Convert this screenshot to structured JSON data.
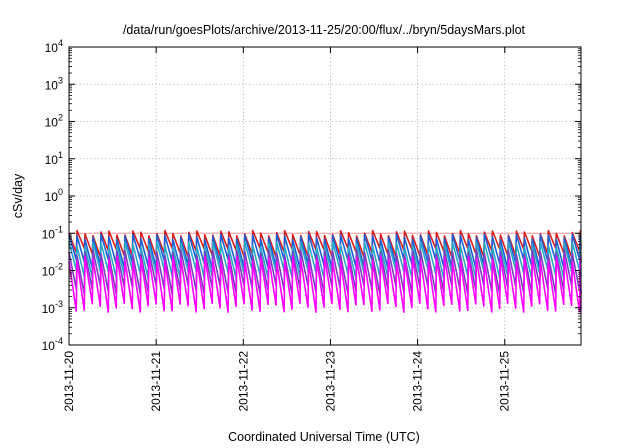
{
  "chart_data": {
    "type": "line",
    "title": "/data/run/goesPlots/archive/2013-11-25/20:00/flux/../bryn/5daysMars.plot",
    "xlabel": "Coordinated Universal Time (UTC)",
    "ylabel": "cSv/day",
    "yscale": "log",
    "ylim": [
      0.0001,
      10000
    ],
    "y_ticks": [
      {
        "base": "10",
        "exp": "-4"
      },
      {
        "base": "10",
        "exp": "-3"
      },
      {
        "base": "10",
        "exp": "-2"
      },
      {
        "base": "10",
        "exp": "-1"
      },
      {
        "base": "10",
        "exp": "0"
      },
      {
        "base": "10",
        "exp": "1"
      },
      {
        "base": "10",
        "exp": "2"
      },
      {
        "base": "10",
        "exp": "3"
      },
      {
        "base": "10",
        "exp": "4"
      }
    ],
    "x_ticks": [
      "2013-11-20",
      "2013-11-21",
      "2013-11-22",
      "2013-11-23",
      "2013-11-24",
      "2013-11-25"
    ],
    "xlim": [
      "2013-11-20T00:00",
      "2013-11-25T21:00"
    ],
    "grid": true,
    "reference_line": {
      "y": 0.1,
      "color": "#ff9999"
    },
    "sawtooth_period_hours": 2.2,
    "series": [
      {
        "color": "#d62020",
        "peak": 0.1,
        "trough": 0.03
      },
      {
        "color": "#1f5fd6",
        "peak": 0.08,
        "trough": 0.015
      },
      {
        "color": "#2aa8c8",
        "peak": 0.05,
        "trough": 0.008
      },
      {
        "color": "#7a3fc0",
        "peak": 0.03,
        "trough": 0.003
      },
      {
        "color": "#ff00ff",
        "peak": 0.02,
        "trough": 0.001
      }
    ]
  }
}
